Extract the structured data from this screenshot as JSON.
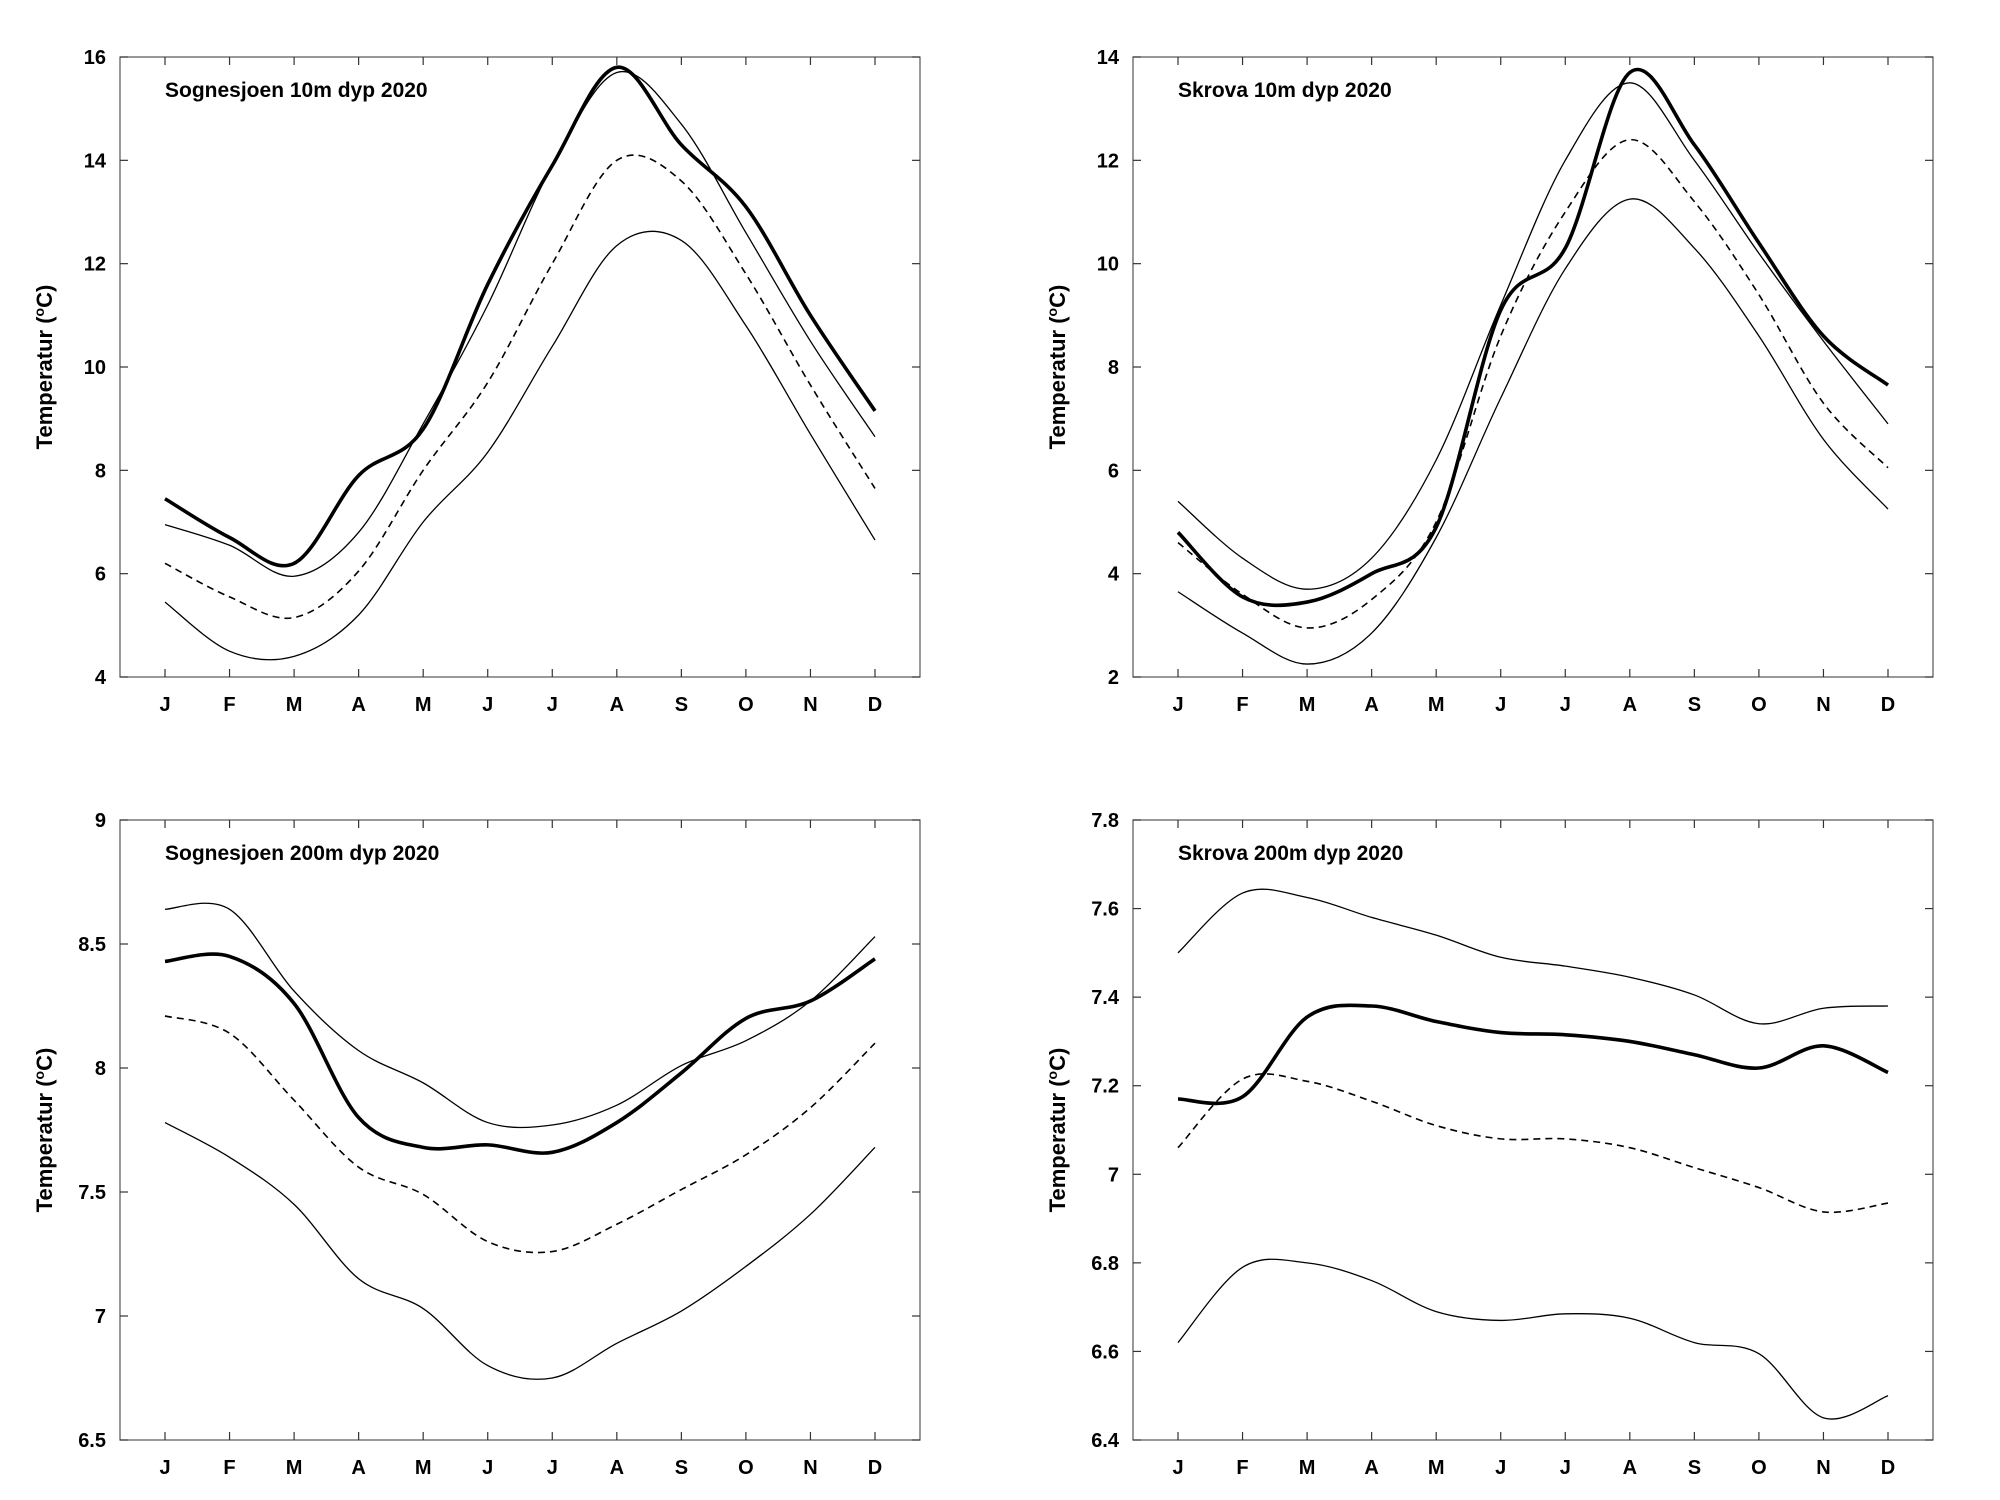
{
  "chart_data": [
    {
      "type": "line",
      "title": "Sognesjoen 10m dyp 2020",
      "ylabel": "Temperatur (oC)",
      "ylabel_main": "Temperatur (",
      "ylabel_sup": "o",
      "ylabel_end": "C)",
      "categories": [
        "J",
        "F",
        "M",
        "A",
        "M",
        "J",
        "J",
        "A",
        "S",
        "O",
        "N",
        "D"
      ],
      "ylim": [
        4,
        16
      ],
      "yticks": [
        4,
        6,
        8,
        10,
        12,
        14,
        16
      ],
      "ytick_labels": [
        "4",
        "6",
        "8",
        "10",
        "12",
        "14",
        "16"
      ],
      "grid": false,
      "series": [
        {
          "style": "thick",
          "values": [
            7.45,
            6.7,
            6.2,
            7.9,
            8.8,
            11.6,
            13.9,
            15.8,
            14.3,
            13.1,
            11.0,
            9.15
          ]
        },
        {
          "style": "thin",
          "values": [
            6.95,
            6.55,
            5.95,
            6.8,
            8.9,
            11.2,
            13.9,
            15.7,
            14.7,
            12.6,
            10.5,
            8.65
          ]
        },
        {
          "style": "dashed",
          "values": [
            6.2,
            5.55,
            5.15,
            6.05,
            8.0,
            9.7,
            12.0,
            14.0,
            13.6,
            11.8,
            9.65,
            7.65
          ]
        },
        {
          "style": "thin",
          "values": [
            5.45,
            4.5,
            4.4,
            5.2,
            7.0,
            8.35,
            10.4,
            12.35,
            12.45,
            10.8,
            8.7,
            6.65
          ]
        }
      ]
    },
    {
      "type": "line",
      "title": "Skrova 10m dyp 2020",
      "ylabel": "Temperatur (oC)",
      "ylabel_main": "Temperatur (",
      "ylabel_sup": "o",
      "ylabel_end": "C)",
      "categories": [
        "J",
        "F",
        "M",
        "A",
        "M",
        "J",
        "J",
        "A",
        "S",
        "O",
        "N",
        "D"
      ],
      "ylim": [
        2,
        14
      ],
      "yticks": [
        2,
        4,
        6,
        8,
        10,
        12,
        14
      ],
      "ytick_labels": [
        "2",
        "4",
        "6",
        "8",
        "10",
        "12",
        "14"
      ],
      "grid": false,
      "series": [
        {
          "style": "thick",
          "values": [
            4.8,
            3.55,
            3.45,
            4.0,
            4.9,
            9.1,
            10.3,
            13.7,
            12.3,
            10.4,
            8.6,
            7.65
          ]
        },
        {
          "style": "thin",
          "values": [
            5.4,
            4.3,
            3.7,
            4.3,
            6.2,
            9.2,
            12.0,
            13.5,
            12.0,
            10.2,
            8.5,
            6.9
          ]
        },
        {
          "style": "dashed",
          "values": [
            4.6,
            3.6,
            2.95,
            3.5,
            5.0,
            8.6,
            11.0,
            12.4,
            11.2,
            9.4,
            7.3,
            6.05
          ]
        },
        {
          "style": "thin",
          "values": [
            3.65,
            2.85,
            2.25,
            2.85,
            4.7,
            7.4,
            9.9,
            11.25,
            10.3,
            8.6,
            6.6,
            5.25
          ]
        }
      ]
    },
    {
      "type": "line",
      "title": "Sognesjoen 200m dyp 2020",
      "ylabel": "Temperatur (oC)",
      "ylabel_main": "Temperatur (",
      "ylabel_sup": "o",
      "ylabel_end": "C)",
      "categories": [
        "J",
        "F",
        "M",
        "A",
        "M",
        "J",
        "J",
        "A",
        "S",
        "O",
        "N",
        "D"
      ],
      "ylim": [
        6.5,
        9
      ],
      "yticks": [
        6.5,
        7,
        7.5,
        8,
        8.5,
        9
      ],
      "ytick_labels": [
        "6.5",
        "7",
        "7.5",
        "8",
        "8.5",
        "9"
      ],
      "grid": false,
      "series": [
        {
          "style": "thick",
          "values": [
            8.43,
            8.45,
            8.26,
            7.8,
            7.68,
            7.69,
            7.66,
            7.78,
            7.98,
            8.2,
            8.27,
            8.44
          ]
        },
        {
          "style": "thin",
          "values": [
            8.64,
            8.64,
            8.31,
            8.07,
            7.94,
            7.78,
            7.77,
            7.85,
            8.01,
            8.11,
            8.27,
            8.53
          ]
        },
        {
          "style": "dashed",
          "values": [
            8.21,
            8.14,
            7.87,
            7.6,
            7.49,
            7.3,
            7.26,
            7.37,
            7.51,
            7.65,
            7.84,
            8.1
          ]
        },
        {
          "style": "thin",
          "values": [
            7.78,
            7.64,
            7.45,
            7.15,
            7.03,
            6.8,
            6.75,
            6.89,
            7.02,
            7.2,
            7.41,
            7.68
          ]
        }
      ]
    },
    {
      "type": "line",
      "title": "Skrova 200m dyp 2020",
      "ylabel": "Temperatur (oC)",
      "ylabel_main": "Temperatur (",
      "ylabel_sup": "o",
      "ylabel_end": "C)",
      "categories": [
        "J",
        "F",
        "M",
        "A",
        "M",
        "J",
        "J",
        "A",
        "S",
        "O",
        "N",
        "D"
      ],
      "ylim": [
        6.4,
        7.8
      ],
      "yticks": [
        6.4,
        6.6,
        6.8,
        7.0,
        7.2,
        7.4,
        7.6,
        7.8
      ],
      "ytick_labels": [
        "6.4",
        "6.6",
        "6.8",
        "7",
        "7.2",
        "7.4",
        "7.6",
        "7.8"
      ],
      "grid": false,
      "series": [
        {
          "style": "thick",
          "values": [
            7.17,
            7.175,
            7.355,
            7.38,
            7.345,
            7.32,
            7.315,
            7.3,
            7.27,
            7.24,
            7.29,
            7.23
          ]
        },
        {
          "style": "thin",
          "values": [
            7.5,
            7.635,
            7.625,
            7.58,
            7.54,
            7.49,
            7.47,
            7.445,
            7.405,
            7.34,
            7.375,
            7.38
          ]
        },
        {
          "style": "dashed",
          "values": [
            7.06,
            7.215,
            7.21,
            7.165,
            7.11,
            7.08,
            7.08,
            7.06,
            7.015,
            6.97,
            6.915,
            6.935
          ]
        },
        {
          "style": "thin",
          "values": [
            6.62,
            6.79,
            6.8,
            6.76,
            6.69,
            6.67,
            6.685,
            6.675,
            6.62,
            6.595,
            6.45,
            6.5
          ]
        }
      ]
    }
  ]
}
